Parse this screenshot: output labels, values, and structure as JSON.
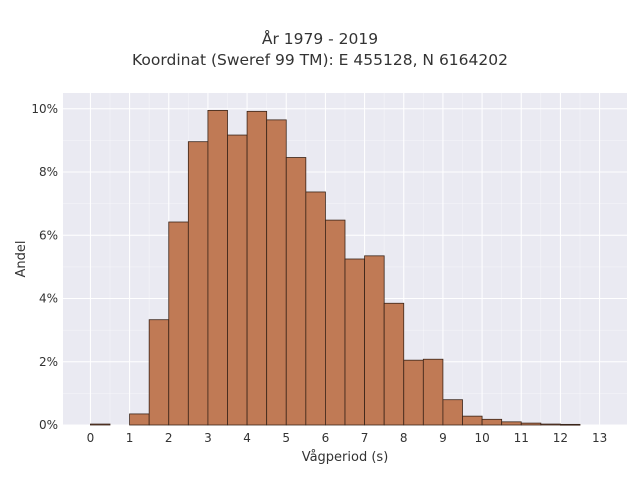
{
  "chart_data": {
    "type": "bar",
    "title_lines": [
      "År 1979 - 2019",
      "Koordinat (Sweref 99 TM): E 455128, N 6164202"
    ],
    "xlabel": "Vågperiod (s)",
    "ylabel": "Andel",
    "xlim": [
      -0.7,
      13.7
    ],
    "ylim": [
      0,
      10.5
    ],
    "x_ticks": [
      "0",
      "1",
      "2",
      "3",
      "4",
      "5",
      "6",
      "7",
      "8",
      "9",
      "10",
      "11",
      "12",
      "13"
    ],
    "y_ticks": [
      "0%",
      "2%",
      "4%",
      "6%",
      "8%",
      "10%"
    ],
    "bin_width": 0.5,
    "bins": [
      {
        "start": 0.0,
        "value": 0.03
      },
      {
        "start": 0.5,
        "value": 0.0
      },
      {
        "start": 1.0,
        "value": 0.35
      },
      {
        "start": 1.5,
        "value": 3.33
      },
      {
        "start": 2.0,
        "value": 6.42
      },
      {
        "start": 2.5,
        "value": 8.96
      },
      {
        "start": 3.0,
        "value": 9.95
      },
      {
        "start": 3.5,
        "value": 9.17
      },
      {
        "start": 4.0,
        "value": 9.92
      },
      {
        "start": 4.5,
        "value": 9.65
      },
      {
        "start": 5.0,
        "value": 8.46
      },
      {
        "start": 5.5,
        "value": 7.37
      },
      {
        "start": 6.0,
        "value": 6.48
      },
      {
        "start": 6.5,
        "value": 5.25
      },
      {
        "start": 7.0,
        "value": 5.35
      },
      {
        "start": 7.5,
        "value": 3.85
      },
      {
        "start": 8.0,
        "value": 2.05
      },
      {
        "start": 8.5,
        "value": 2.08
      },
      {
        "start": 9.0,
        "value": 0.8
      },
      {
        "start": 9.5,
        "value": 0.28
      },
      {
        "start": 10.0,
        "value": 0.18
      },
      {
        "start": 10.5,
        "value": 0.1
      },
      {
        "start": 11.0,
        "value": 0.06
      },
      {
        "start": 11.5,
        "value": 0.03
      },
      {
        "start": 12.0,
        "value": 0.02
      },
      {
        "start": 12.5,
        "value": 0.0
      }
    ],
    "grid": true,
    "bar_color": "#c07a55",
    "edge_color": "#3a2418",
    "plot_background": "#eaeaf2"
  }
}
